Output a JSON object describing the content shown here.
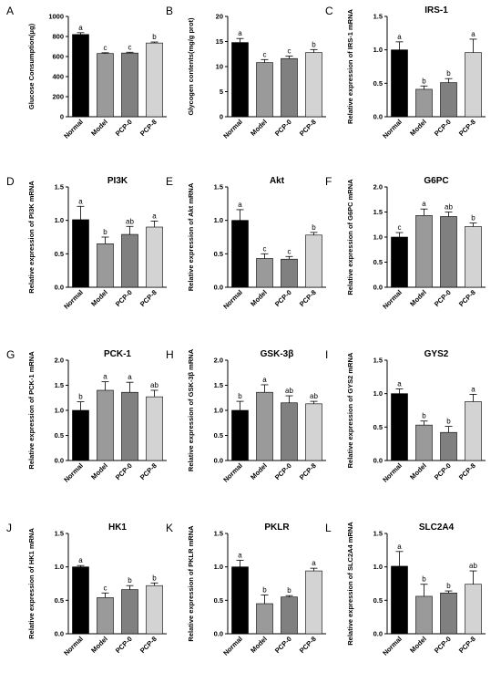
{
  "chart_data": [
    {
      "letter": "A",
      "type": "bar",
      "title": "",
      "ylabel": "Glucose Consumption(μg)",
      "ylim": [
        0,
        1000
      ],
      "yticks": [
        0,
        200,
        400,
        600,
        800,
        1000
      ],
      "categories": [
        "Normal",
        "Model",
        "PCP-0",
        "PCP-8"
      ],
      "values": [
        820,
        630,
        635,
        735
      ],
      "errors": [
        18,
        8,
        8,
        10
      ],
      "letters": [
        "a",
        "c",
        "c",
        "b"
      ]
    },
    {
      "letter": "B",
      "type": "bar",
      "title": "",
      "ylabel": "Glycogen contents(mg/g prot)",
      "ylim": [
        0,
        20
      ],
      "yticks": [
        0,
        5,
        10,
        15,
        20
      ],
      "categories": [
        "Normal",
        "Model",
        "PCP-0",
        "PCP-8"
      ],
      "values": [
        14.8,
        10.8,
        11.6,
        12.8
      ],
      "errors": [
        0.8,
        0.6,
        0.5,
        0.6
      ],
      "letters": [
        "a",
        "c",
        "c",
        "b"
      ]
    },
    {
      "letter": "C",
      "type": "bar",
      "title": "IRS-1",
      "ylabel": "Relative expression of IRS-1 mRNA",
      "ylim": [
        0,
        1.5
      ],
      "yticks": [
        0.0,
        0.5,
        1.0,
        1.5
      ],
      "categories": [
        "Normal",
        "Model",
        "PCP-0",
        "PCP-8"
      ],
      "values": [
        1.0,
        0.41,
        0.51,
        0.96
      ],
      "errors": [
        0.12,
        0.05,
        0.06,
        0.2
      ],
      "letters": [
        "a",
        "b",
        "b",
        "a"
      ]
    },
    {
      "letter": "D",
      "type": "bar",
      "title": "PI3K",
      "ylabel": "Relative expression of PI3K mRNA",
      "ylim": [
        0,
        1.5
      ],
      "yticks": [
        0.0,
        0.5,
        1.0,
        1.5
      ],
      "categories": [
        "Normal",
        "Model",
        "PCP-0",
        "PCP-8"
      ],
      "values": [
        1.01,
        0.65,
        0.79,
        0.9
      ],
      "errors": [
        0.2,
        0.1,
        0.12,
        0.09
      ],
      "letters": [
        "a",
        "b",
        "ab",
        "a"
      ]
    },
    {
      "letter": "E",
      "type": "bar",
      "title": "Akt",
      "ylabel": "Relative expression of Akt mRNA",
      "ylim": [
        0,
        1.5
      ],
      "yticks": [
        0.0,
        0.5,
        1.0,
        1.5
      ],
      "categories": [
        "Normal",
        "Model",
        "PCP-0",
        "PCP-8"
      ],
      "values": [
        1.0,
        0.43,
        0.42,
        0.78
      ],
      "errors": [
        0.16,
        0.07,
        0.04,
        0.04
      ],
      "letters": [
        "a",
        "c",
        "c",
        "b"
      ]
    },
    {
      "letter": "F",
      "type": "bar",
      "title": "G6PC",
      "ylabel": "Relative expression of G6PC mRNA",
      "ylim": [
        0,
        2.0
      ],
      "yticks": [
        0.0,
        0.5,
        1.0,
        1.5,
        2.0
      ],
      "categories": [
        "Normal",
        "Model",
        "PCP-0",
        "PCP-8"
      ],
      "values": [
        1.0,
        1.43,
        1.41,
        1.21
      ],
      "errors": [
        0.09,
        0.13,
        0.09,
        0.07
      ],
      "letters": [
        "c",
        "a",
        "ab",
        "b"
      ]
    },
    {
      "letter": "G",
      "type": "bar",
      "title": "PCK-1",
      "ylabel": "Relative expression of PCK-1 mRNA",
      "ylim": [
        0,
        2.0
      ],
      "yticks": [
        0.0,
        0.5,
        1.0,
        1.5,
        2.0
      ],
      "categories": [
        "Normal",
        "Model",
        "PCP-0",
        "PCP-8"
      ],
      "values": [
        1.0,
        1.4,
        1.36,
        1.27
      ],
      "errors": [
        0.17,
        0.17,
        0.2,
        0.13
      ],
      "letters": [
        "b",
        "a",
        "a",
        "ab"
      ]
    },
    {
      "letter": "H",
      "type": "bar",
      "title": "GSK-3β",
      "ylabel": "Relative expression of GSK-3β mRNA",
      "ylim": [
        0,
        2.0
      ],
      "yticks": [
        0.0,
        0.5,
        1.0,
        1.5,
        2.0
      ],
      "categories": [
        "Normal",
        "Model",
        "PCP-0",
        "PCP-8"
      ],
      "values": [
        1.0,
        1.36,
        1.15,
        1.13
      ],
      "errors": [
        0.18,
        0.15,
        0.14,
        0.05
      ],
      "letters": [
        "b",
        "a",
        "ab",
        "ab"
      ]
    },
    {
      "letter": "I",
      "type": "bar",
      "title": "GYS2",
      "ylabel": "Relative expression of GYS2 mRNA",
      "ylim": [
        0,
        1.5
      ],
      "yticks": [
        0.0,
        0.5,
        1.0,
        1.5
      ],
      "categories": [
        "Normal",
        "Model",
        "PCP-0",
        "PCP-8"
      ],
      "values": [
        1.0,
        0.53,
        0.42,
        0.88
      ],
      "errors": [
        0.07,
        0.06,
        0.09,
        0.11
      ],
      "letters": [
        "a",
        "b",
        "b",
        "a"
      ]
    },
    {
      "letter": "J",
      "type": "bar",
      "title": "HK1",
      "ylabel": "Relative expression of HK1 mRNA",
      "ylim": [
        0,
        1.5
      ],
      "yticks": [
        0.0,
        0.5,
        1.0,
        1.5
      ],
      "categories": [
        "Normal",
        "Model",
        "PCP-0",
        "PCP-8"
      ],
      "values": [
        1.0,
        0.54,
        0.66,
        0.72
      ],
      "errors": [
        0.02,
        0.07,
        0.06,
        0.04
      ],
      "letters": [
        "a",
        "c",
        "b",
        "b"
      ]
    },
    {
      "letter": "K",
      "type": "bar",
      "title": "PKLR",
      "ylabel": "Relative expression of PKLR mRNA",
      "ylim": [
        0,
        1.5
      ],
      "yticks": [
        0.0,
        0.5,
        1.0,
        1.5
      ],
      "categories": [
        "Normal",
        "Model",
        "PCP-0",
        "PCP-8"
      ],
      "values": [
        1.0,
        0.45,
        0.55,
        0.94
      ],
      "errors": [
        0.1,
        0.13,
        0.02,
        0.04
      ],
      "letters": [
        "a",
        "b",
        "b",
        "a"
      ]
    },
    {
      "letter": "L",
      "type": "bar",
      "title": "SLC2A4",
      "ylabel": "Relative expression of SLC2A4 mRNA",
      "ylim": [
        0,
        1.5
      ],
      "yticks": [
        0.0,
        0.5,
        1.0,
        1.5
      ],
      "categories": [
        "Normal",
        "Model",
        "PCP-0",
        "PCP-8"
      ],
      "values": [
        1.01,
        0.56,
        0.61,
        0.74
      ],
      "errors": [
        0.22,
        0.18,
        0.03,
        0.2
      ],
      "letters": [
        "a",
        "b",
        "b",
        "ab"
      ]
    }
  ],
  "colors": {
    "bars": [
      "#000000",
      "#9a9a9a",
      "#808080",
      "#d3d3d3"
    ],
    "edge": "#000000"
  }
}
